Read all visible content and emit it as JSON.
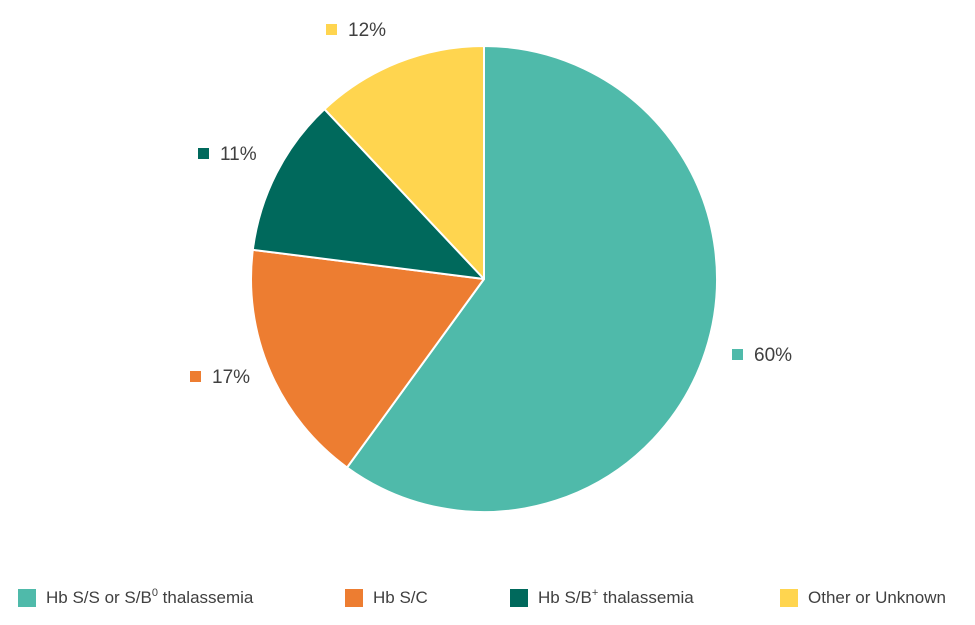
{
  "chart_data": {
    "type": "pie",
    "title": "",
    "start_angle_deg": 0,
    "direction": "clockwise",
    "legend_position": "bottom",
    "slices": [
      {
        "label_main": "Hb S/S or S/B",
        "label_sup": "0",
        "label_rest": " thalassemia",
        "value": 60,
        "display": "60%",
        "color": "#4FBAAA"
      },
      {
        "label_main": "Hb S/C",
        "label_sup": "",
        "label_rest": "",
        "value": 17,
        "display": "17%",
        "color": "#ED7D31"
      },
      {
        "label_main": "Hb S/B",
        "label_sup": "+",
        "label_rest": " thalassemia",
        "value": 11,
        "display": "11%",
        "color": "#00695C"
      },
      {
        "label_main": "Other or Unknown",
        "label_sup": "",
        "label_rest": "",
        "value": 12,
        "display": "12%",
        "color": "#FFD54F"
      }
    ]
  }
}
